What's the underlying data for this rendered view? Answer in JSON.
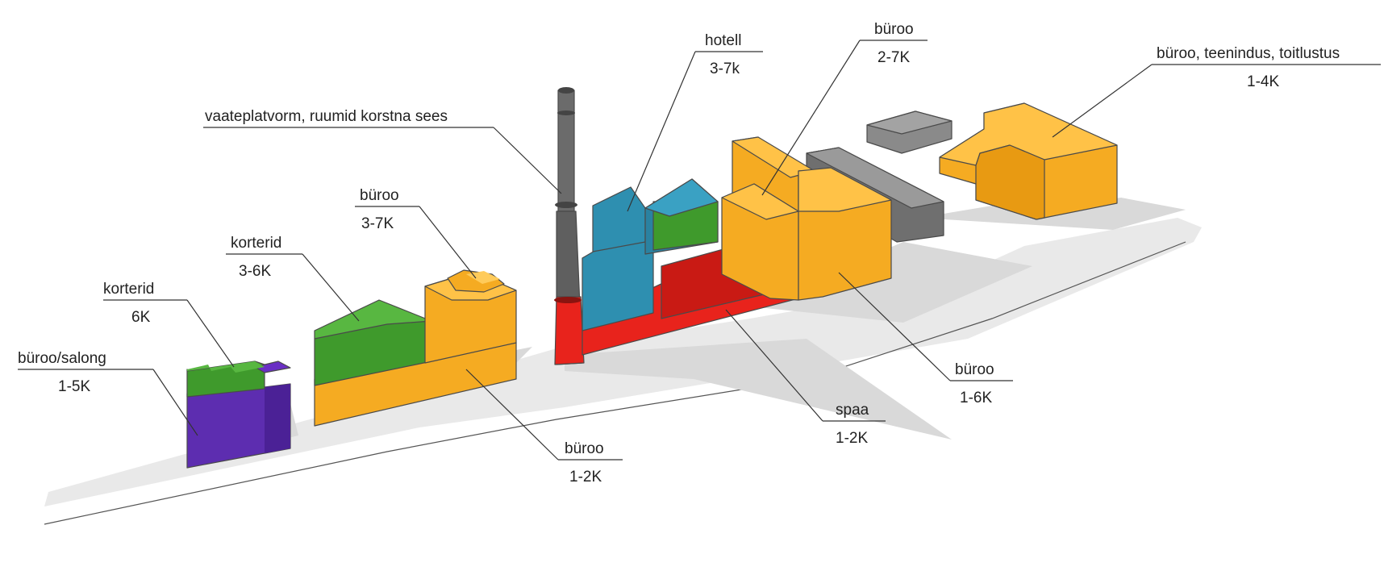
{
  "colors": {
    "office": "#f5ab22",
    "apartments": "#3f9a2c",
    "salon": "#5d2db0",
    "hotel": "#2e8fb0",
    "spa": "#e8231c",
    "chimney": "#666666",
    "existing": "#7a7a7a"
  },
  "labels": {
    "salong": {
      "name": "büroo/salong",
      "floors": "1-5K"
    },
    "korterid_6": {
      "name": "korterid",
      "floors": "6K"
    },
    "korterid_36": {
      "name": "korterid",
      "floors": "3-6K"
    },
    "buroo_37": {
      "name": "büroo",
      "floors": "3-7K"
    },
    "korsten": {
      "name": "vaateplatvorm, ruumid korstna sees"
    },
    "hotell": {
      "name": "hotell",
      "floors": "3-7k"
    },
    "buroo_27": {
      "name": "büroo",
      "floors": "2-7K"
    },
    "teenindus": {
      "name": "büroo, teenindus, toitlustus",
      "floors": "1-4K"
    },
    "buroo_12": {
      "name": "büroo",
      "floors": "1-2K"
    },
    "spaa": {
      "name": "spaa",
      "floors": "1-2K"
    },
    "buroo_16": {
      "name": "büroo",
      "floors": "1-6K"
    }
  }
}
